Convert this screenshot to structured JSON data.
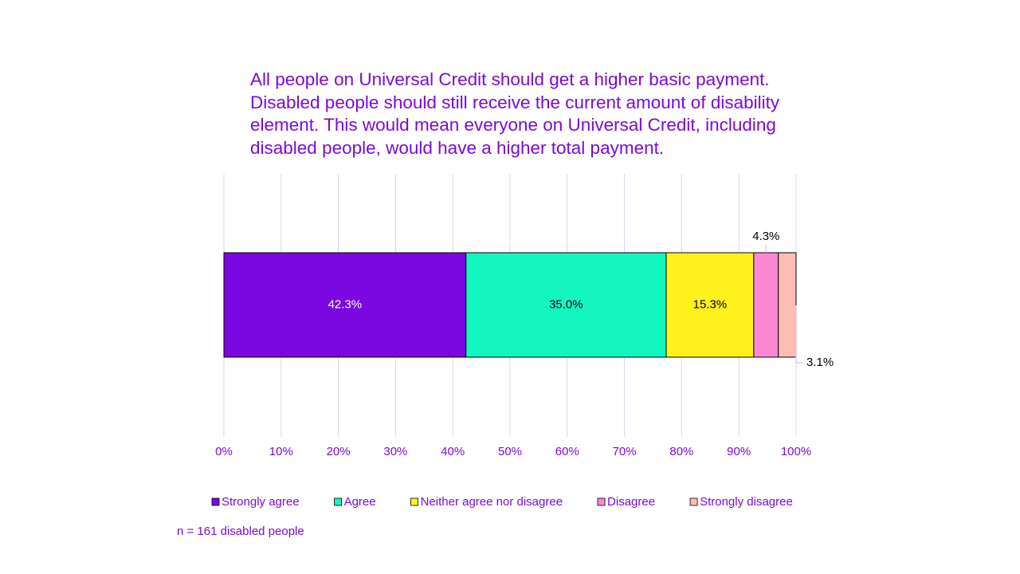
{
  "chart_data": {
    "type": "stacked-bar-horizontal",
    "title": "All people on Universal Credit should get a higher basic payment. Disabled people should still receive the current amount of disability element. This would mean everyone on Universal Credit, including disabled people, would have a higher total payment.",
    "categories": [
      null
    ],
    "series": [
      {
        "name": "Strongly agree",
        "color": "#7b08e0",
        "values": [
          42.3
        ],
        "value_labels": [
          "42.3%"
        ]
      },
      {
        "name": "Agree",
        "color": "#14f6c0",
        "values": [
          35.0
        ],
        "value_labels": [
          "35.0%"
        ]
      },
      {
        "name": "Neither agree nor disagree",
        "color": "#fff21c",
        "values": [
          15.3
        ],
        "value_labels": [
          "15.3%"
        ]
      },
      {
        "name": "Disagree",
        "color": "#fc87d4",
        "values": [
          4.3
        ],
        "value_labels": [
          "4.3%"
        ]
      },
      {
        "name": "Strongly disagree",
        "color": "#fcbdb4",
        "values": [
          3.1
        ],
        "value_labels": [
          "3.1%"
        ]
      }
    ],
    "xlim": [
      0,
      100
    ],
    "xticks": [
      {
        "value": 0,
        "label": "0%"
      },
      {
        "value": 10,
        "label": "10%"
      },
      {
        "value": 20,
        "label": "20%"
      },
      {
        "value": 30,
        "label": "30%"
      },
      {
        "value": 40,
        "label": "40%"
      },
      {
        "value": 50,
        "label": "50%"
      },
      {
        "value": 60,
        "label": "60%"
      },
      {
        "value": 70,
        "label": "70%"
      },
      {
        "value": 80,
        "label": "80%"
      },
      {
        "value": 90,
        "label": "90%"
      },
      {
        "value": 100,
        "label": "100%"
      }
    ],
    "grid": true,
    "legend": "bottom",
    "note": "n = 161 disabled people"
  }
}
